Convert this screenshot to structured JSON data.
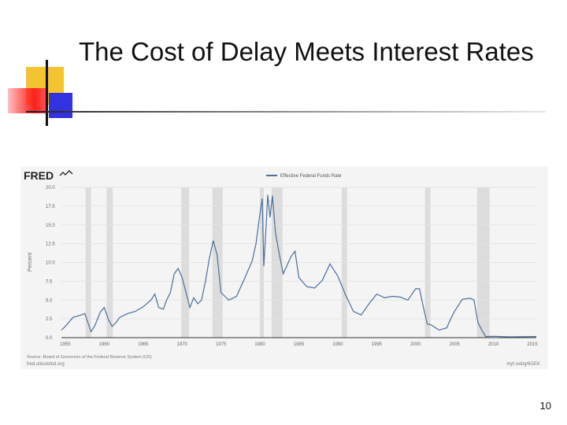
{
  "slide": {
    "title": "The Cost of Delay Meets Interest Rates",
    "page_number": "10"
  },
  "fred": {
    "logo_text": "FRED",
    "source_note": "Source: Board of Governors of the Federal Reserve System (US)",
    "site": "fred.stlouisfed.org",
    "short_url": "myf.red/g/6GEK"
  },
  "colors": {
    "line": "#4a6f9a",
    "recession": "#dcdcdc",
    "grid": "#e3e3e3",
    "background": "#f4f4f4"
  },
  "chart_data": {
    "type": "line",
    "title": "",
    "xlabel": "",
    "ylabel": "Percent",
    "legend": "top-center",
    "grid": true,
    "xlim": [
      1954.5,
      2015.5
    ],
    "ylim": [
      0,
      20
    ],
    "xticks": [
      "1955",
      "1960",
      "1965",
      "1970",
      "1975",
      "1980",
      "1985",
      "1990",
      "1995",
      "2000",
      "2005",
      "2010",
      "2015"
    ],
    "yticks": [
      "0.0",
      "2.5",
      "5.0",
      "7.5",
      "10.0",
      "12.5",
      "15.0",
      "17.5",
      "20.0"
    ],
    "recessions": [
      [
        1957.6,
        1958.3
      ],
      [
        1960.3,
        1961.1
      ],
      [
        1969.9,
        1970.9
      ],
      [
        1973.9,
        1975.2
      ],
      [
        1980.0,
        1980.5
      ],
      [
        1981.5,
        1982.9
      ],
      [
        1990.5,
        1991.2
      ],
      [
        2001.2,
        2001.9
      ],
      [
        2007.9,
        2009.5
      ]
    ],
    "series": [
      {
        "name": "Effective Federal Funds Rate",
        "x": [
          1954.5,
          1955,
          1956,
          1957,
          1957.5,
          1958.3,
          1958.8,
          1959.5,
          1960,
          1960.5,
          1961,
          1961.5,
          1962,
          1963,
          1964,
          1965,
          1966,
          1966.5,
          1967,
          1967.6,
          1968,
          1968.5,
          1969,
          1969.5,
          1970,
          1970.5,
          1971,
          1971.5,
          1972,
          1972.5,
          1973,
          1973.5,
          1974,
          1974.5,
          1975,
          1975.5,
          1976,
          1977,
          1978,
          1978.5,
          1979,
          1979.5,
          1980,
          1980.3,
          1980.5,
          1980.8,
          1981,
          1981.3,
          1981.6,
          1982,
          1982.5,
          1982.9,
          1983,
          1984,
          1984.5,
          1985,
          1986,
          1987,
          1988,
          1989,
          1989.5,
          1990,
          1991,
          1992,
          1993,
          1994,
          1995,
          1996,
          1997,
          1998,
          1999,
          2000,
          2000.5,
          2001,
          2001.5,
          2002,
          2003,
          2004,
          2004.5,
          2005,
          2006,
          2007,
          2007.5,
          2008,
          2008.5,
          2009,
          2010,
          2012,
          2015.5
        ],
        "y": [
          1.0,
          1.5,
          2.7,
          3.0,
          3.2,
          0.8,
          1.6,
          3.4,
          4.0,
          2.5,
          1.5,
          2.0,
          2.7,
          3.2,
          3.5,
          4.1,
          5.0,
          5.8,
          4.0,
          3.8,
          5.0,
          6.0,
          8.5,
          9.2,
          8.0,
          6.0,
          4.0,
          5.3,
          4.5,
          5.0,
          7.5,
          10.5,
          12.9,
          11.0,
          6.0,
          5.5,
          5.0,
          5.5,
          7.8,
          9.0,
          10.2,
          12.5,
          16.5,
          18.5,
          9.5,
          15.0,
          19.0,
          16.0,
          18.9,
          14.0,
          11.0,
          9.0,
          8.5,
          10.8,
          11.5,
          8.0,
          6.8,
          6.6,
          7.6,
          9.8,
          9.0,
          8.2,
          5.7,
          3.5,
          3.0,
          4.5,
          5.8,
          5.3,
          5.5,
          5.4,
          5.0,
          6.5,
          6.5,
          4.0,
          1.8,
          1.7,
          1.0,
          1.3,
          2.5,
          3.5,
          5.1,
          5.25,
          5.0,
          2.0,
          1.0,
          0.15,
          0.18,
          0.1,
          0.15
        ]
      }
    ]
  }
}
